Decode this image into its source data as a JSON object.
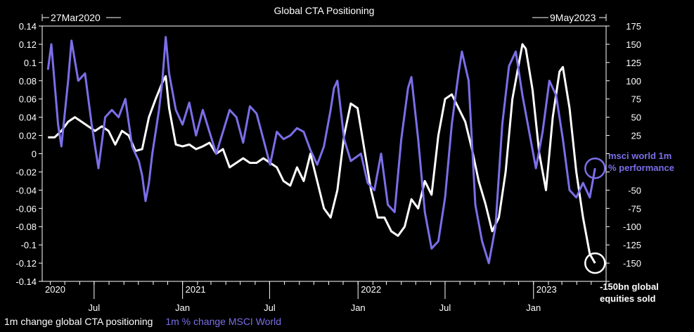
{
  "chart_data": {
    "type": "line",
    "title": "Global CTA Positioning",
    "start_date_label": "27Mar2020",
    "end_date_label": "9May2023",
    "background": "#000000",
    "grid": false,
    "colors": {
      "positioning": "#FFFFFF",
      "msci": "#7B6FE8",
      "axis": "#FFFFFF"
    },
    "x_tick_labels": [
      "Jul",
      "Jan",
      "Jul",
      "Jan",
      "Jul",
      "Jan"
    ],
    "year_labels": [
      "2020",
      "2021",
      "2022",
      "2023"
    ],
    "y_left": {
      "ylim": [
        -0.14,
        0.14
      ],
      "ticks": [
        0.14,
        0.12,
        0.1,
        0.08,
        0.06,
        0.04,
        0.02,
        0,
        -0.02,
        -0.04,
        -0.06,
        -0.08,
        -0.1,
        -0.12,
        -0.14
      ],
      "tick_labels": [
        "0.14",
        "0.12",
        "0.1",
        "0.08",
        "0.06",
        "0.04",
        "0.02",
        "0",
        "-0.02",
        "-0.04",
        "-0.06",
        "-0.08",
        "-0.1",
        "-0.12",
        "-0.14"
      ]
    },
    "y_right": {
      "ylim": [
        -175,
        175
      ],
      "ticks": [
        175,
        150,
        125,
        100,
        75,
        50,
        25,
        0,
        -25,
        -50,
        -75,
        -100,
        -125,
        -150,
        -175
      ],
      "tick_labels": [
        "175",
        "150",
        "125",
        "100",
        "75",
        "50",
        "25",
        "",
        "",
        "-50",
        "-75",
        "-100",
        "-125",
        "-150",
        ""
      ]
    },
    "series": [
      {
        "name": "1m change global CTA positioning",
        "axis": "left",
        "color": "#FFFFFF",
        "points": [
          [
            "2020-03-27",
            0.018
          ],
          [
            "2020-04-10",
            0.018
          ],
          [
            "2020-04-24",
            0.025
          ],
          [
            "2020-05-08",
            0.035
          ],
          [
            "2020-05-22",
            0.04
          ],
          [
            "2020-06-05",
            0.035
          ],
          [
            "2020-06-19",
            0.03
          ],
          [
            "2020-07-03",
            0.025
          ],
          [
            "2020-07-17",
            0.03
          ],
          [
            "2020-07-31",
            0.025
          ],
          [
            "2020-08-14",
            0.01
          ],
          [
            "2020-08-28",
            0.025
          ],
          [
            "2020-09-11",
            0.02
          ],
          [
            "2020-09-25",
            0.003
          ],
          [
            "2020-10-09",
            0.005
          ],
          [
            "2020-10-23",
            0.04
          ],
          [
            "2020-11-06",
            0.06
          ],
          [
            "2020-11-20",
            0.078
          ],
          [
            "2020-11-27",
            0.085
          ],
          [
            "2020-12-04",
            0.05
          ],
          [
            "2020-12-18",
            0.01
          ],
          [
            "2021-01-01",
            0.008
          ],
          [
            "2021-01-15",
            0.01
          ],
          [
            "2021-01-29",
            0.005
          ],
          [
            "2021-02-12",
            0.008
          ],
          [
            "2021-02-26",
            0.012
          ],
          [
            "2021-03-12",
            0.0
          ],
          [
            "2021-03-26",
            0.005
          ],
          [
            "2021-04-09",
            -0.015
          ],
          [
            "2021-04-23",
            -0.01
          ],
          [
            "2021-05-07",
            -0.005
          ],
          [
            "2021-05-21",
            -0.01
          ],
          [
            "2021-06-04",
            -0.01
          ],
          [
            "2021-06-18",
            -0.005
          ],
          [
            "2021-07-02",
            -0.01
          ],
          [
            "2021-07-16",
            -0.015
          ],
          [
            "2021-07-30",
            -0.03
          ],
          [
            "2021-08-13",
            -0.035
          ],
          [
            "2021-08-27",
            -0.015
          ],
          [
            "2021-09-10",
            -0.03
          ],
          [
            "2021-09-24",
            0.0
          ],
          [
            "2021-10-08",
            -0.03
          ],
          [
            "2021-10-22",
            -0.06
          ],
          [
            "2021-11-05",
            -0.07
          ],
          [
            "2021-11-19",
            -0.04
          ],
          [
            "2021-12-03",
            0.02
          ],
          [
            "2021-12-17",
            0.055
          ],
          [
            "2021-12-31",
            0.05
          ],
          [
            "2022-01-14",
            0.005
          ],
          [
            "2022-01-28",
            -0.04
          ],
          [
            "2022-02-11",
            -0.07
          ],
          [
            "2022-02-25",
            -0.07
          ],
          [
            "2022-03-11",
            -0.085
          ],
          [
            "2022-03-25",
            -0.09
          ],
          [
            "2022-04-08",
            -0.08
          ],
          [
            "2022-04-22",
            -0.05
          ],
          [
            "2022-05-06",
            -0.06
          ],
          [
            "2022-05-20",
            -0.03
          ],
          [
            "2022-06-03",
            -0.045
          ],
          [
            "2022-06-17",
            0.02
          ],
          [
            "2022-07-01",
            0.06
          ],
          [
            "2022-07-15",
            0.065
          ],
          [
            "2022-07-29",
            0.05
          ],
          [
            "2022-08-12",
            0.035
          ],
          [
            "2022-08-26",
            0.005
          ],
          [
            "2022-09-09",
            -0.03
          ],
          [
            "2022-09-23",
            -0.055
          ],
          [
            "2022-10-07",
            -0.085
          ],
          [
            "2022-10-21",
            -0.07
          ],
          [
            "2022-11-04",
            -0.02
          ],
          [
            "2022-11-18",
            0.06
          ],
          [
            "2022-12-02",
            0.1
          ],
          [
            "2022-12-09",
            0.12
          ],
          [
            "2022-12-16",
            0.115
          ],
          [
            "2022-12-30",
            0.07
          ],
          [
            "2023-01-13",
            0.0
          ],
          [
            "2023-01-27",
            -0.04
          ],
          [
            "2023-02-10",
            0.04
          ],
          [
            "2023-02-24",
            0.09
          ],
          [
            "2023-03-03",
            0.095
          ],
          [
            "2023-03-17",
            0.05
          ],
          [
            "2023-03-31",
            -0.02
          ],
          [
            "2023-04-14",
            -0.07
          ],
          [
            "2023-04-28",
            -0.11
          ],
          [
            "2023-05-09",
            -0.12
          ]
        ]
      },
      {
        "name": "1m % change MSCI World",
        "axis": "right",
        "color": "#7B6FE8",
        "points": [
          [
            "2020-03-27",
            115
          ],
          [
            "2020-04-03",
            150
          ],
          [
            "2020-04-17",
            40
          ],
          [
            "2020-04-24",
            10
          ],
          [
            "2020-05-08",
            100
          ],
          [
            "2020-05-15",
            155
          ],
          [
            "2020-05-29",
            100
          ],
          [
            "2020-06-12",
            110
          ],
          [
            "2020-06-26",
            40
          ],
          [
            "2020-07-03",
            10
          ],
          [
            "2020-07-10",
            -20
          ],
          [
            "2020-07-24",
            50
          ],
          [
            "2020-08-07",
            60
          ],
          [
            "2020-08-21",
            50
          ],
          [
            "2020-09-04",
            75
          ],
          [
            "2020-09-18",
            10
          ],
          [
            "2020-10-02",
            -10
          ],
          [
            "2020-10-09",
            -30
          ],
          [
            "2020-10-16",
            -65
          ],
          [
            "2020-10-23",
            -40
          ],
          [
            "2020-10-30",
            0
          ],
          [
            "2020-11-06",
            30
          ],
          [
            "2020-11-13",
            60
          ],
          [
            "2020-11-20",
            100
          ],
          [
            "2020-11-27",
            160
          ],
          [
            "2020-12-04",
            110
          ],
          [
            "2020-12-18",
            60
          ],
          [
            "2021-01-01",
            40
          ],
          [
            "2021-01-15",
            70
          ],
          [
            "2021-01-29",
            25
          ],
          [
            "2021-02-12",
            60
          ],
          [
            "2021-02-26",
            30
          ],
          [
            "2021-03-12",
            0
          ],
          [
            "2021-03-26",
            30
          ],
          [
            "2021-04-09",
            60
          ],
          [
            "2021-04-23",
            50
          ],
          [
            "2021-05-07",
            15
          ],
          [
            "2021-05-21",
            65
          ],
          [
            "2021-06-04",
            55
          ],
          [
            "2021-06-18",
            20
          ],
          [
            "2021-07-02",
            -15
          ],
          [
            "2021-07-16",
            30
          ],
          [
            "2021-07-30",
            20
          ],
          [
            "2021-08-13",
            25
          ],
          [
            "2021-08-27",
            35
          ],
          [
            "2021-09-10",
            30
          ],
          [
            "2021-09-24",
            5
          ],
          [
            "2021-10-08",
            -15
          ],
          [
            "2021-10-22",
            10
          ],
          [
            "2021-11-05",
            60
          ],
          [
            "2021-11-12",
            90
          ],
          [
            "2021-11-19",
            100
          ],
          [
            "2021-12-03",
            20
          ],
          [
            "2021-12-17",
            -10
          ],
          [
            "2022-01-07",
            0
          ],
          [
            "2022-01-21",
            -40
          ],
          [
            "2022-02-04",
            -50
          ],
          [
            "2022-02-18",
            0
          ],
          [
            "2022-03-04",
            -70
          ],
          [
            "2022-03-18",
            -80
          ],
          [
            "2022-04-01",
            20
          ],
          [
            "2022-04-15",
            90
          ],
          [
            "2022-04-22",
            105
          ],
          [
            "2022-05-06",
            20
          ],
          [
            "2022-05-20",
            -80
          ],
          [
            "2022-06-03",
            -130
          ],
          [
            "2022-06-17",
            -120
          ],
          [
            "2022-07-01",
            -60
          ],
          [
            "2022-07-15",
            40
          ],
          [
            "2022-07-29",
            110
          ],
          [
            "2022-08-05",
            140
          ],
          [
            "2022-08-19",
            100
          ],
          [
            "2022-09-02",
            -70
          ],
          [
            "2022-09-16",
            -120
          ],
          [
            "2022-09-30",
            -150
          ],
          [
            "2022-10-14",
            -100
          ],
          [
            "2022-10-28",
            40
          ],
          [
            "2022-11-11",
            120
          ],
          [
            "2022-11-25",
            140
          ],
          [
            "2022-12-09",
            80
          ],
          [
            "2022-12-23",
            30
          ],
          [
            "2023-01-06",
            -20
          ],
          [
            "2023-01-20",
            30
          ],
          [
            "2023-02-03",
            100
          ],
          [
            "2023-02-17",
            80
          ],
          [
            "2023-03-03",
            20
          ],
          [
            "2023-03-17",
            -50
          ],
          [
            "2023-03-31",
            -60
          ],
          [
            "2023-04-14",
            -40
          ],
          [
            "2023-04-28",
            -60
          ],
          [
            "2023-05-09",
            -20
          ]
        ]
      }
    ],
    "annotations": [
      {
        "name": "msci-callout",
        "text_lines": [
          "msci world 1m",
          "% performance"
        ],
        "color": "#7B6FE8",
        "date": "2023-05-09",
        "value": -20,
        "axis": "right"
      },
      {
        "name": "cta-callout",
        "text_lines": [
          "-150bn global",
          "equities sold"
        ],
        "color": "#FFFFFF",
        "date": "2023-05-09",
        "value": -0.12,
        "axis": "left"
      }
    ],
    "legend": {
      "placement": "bottom-left",
      "entries": [
        {
          "label": "1m change global CTA positioning",
          "color": "#FFFFFF"
        },
        {
          "label": "1m % change MSCI World",
          "color": "#7B6FE8"
        }
      ]
    }
  }
}
